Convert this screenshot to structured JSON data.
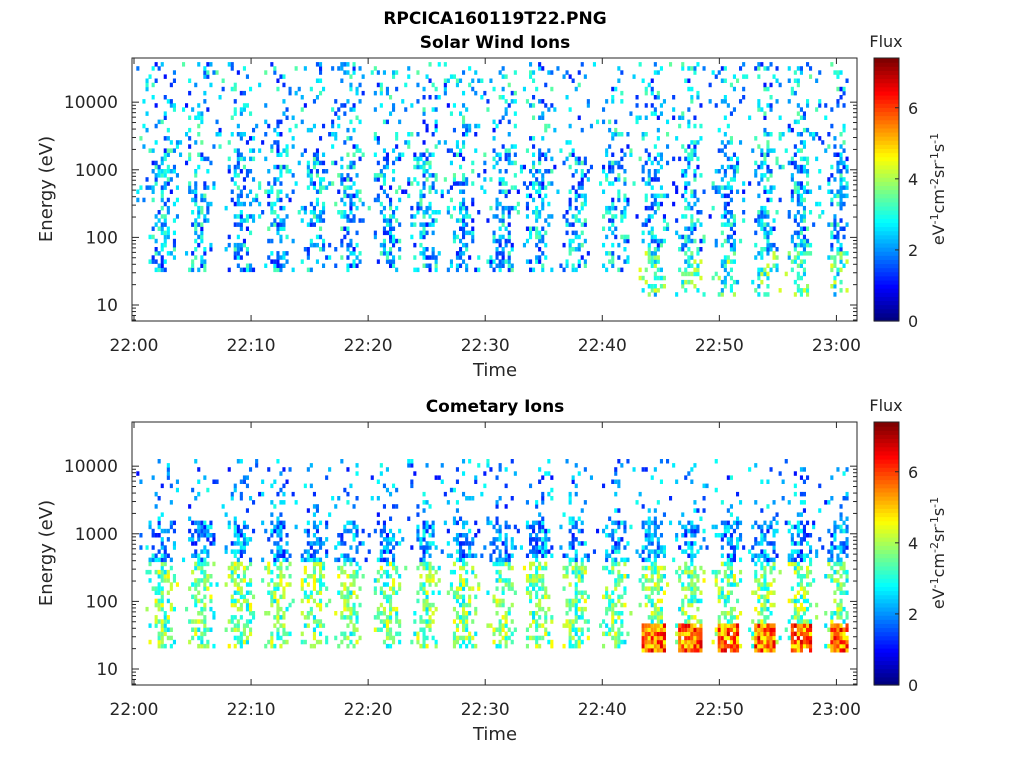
{
  "figure_title": "RPCICA160119T22.PNG",
  "colors": {
    "axis": "#262626",
    "background": "#ffffff"
  },
  "chart_data": [
    {
      "type": "heatmap",
      "title": "Solar Wind Ions",
      "xlabel": "Time",
      "ylabel": "Energy (eV)",
      "x_range": [
        "22:00",
        "23:01"
      ],
      "y_range_ev": [
        5.8,
        45000
      ],
      "y_scale": "log",
      "x_ticks": [
        "22:00",
        "22:10",
        "22:20",
        "22:30",
        "22:40",
        "22:50",
        "23:00"
      ],
      "y_ticks": [
        "10",
        "100",
        "1000",
        "10000"
      ],
      "colorbar": {
        "title": "Flux",
        "label": "eV-1cm-2sr-1s-1",
        "range": [
          0,
          7.4
        ],
        "ticks": [
          "0",
          "2",
          "4",
          "6"
        ],
        "colormap": "jet"
      },
      "legend": "none",
      "grid": false
    },
    {
      "type": "heatmap",
      "title": "Cometary Ions",
      "xlabel": "Time",
      "ylabel": "Energy (eV)",
      "x_range": [
        "22:00",
        "23:01"
      ],
      "y_range_ev": [
        5.8,
        45000
      ],
      "y_scale": "log",
      "x_ticks": [
        "22:00",
        "22:10",
        "22:20",
        "22:30",
        "22:40",
        "22:50",
        "23:00"
      ],
      "y_ticks": [
        "10",
        "100",
        "1000",
        "10000"
      ],
      "colorbar": {
        "title": "Flux",
        "label": "eV-1cm-2sr-1s-1",
        "range": [
          0,
          7.4
        ],
        "ticks": [
          "0",
          "2",
          "4",
          "6"
        ],
        "colormap": "jet"
      },
      "legend": "none",
      "grid": false
    }
  ]
}
